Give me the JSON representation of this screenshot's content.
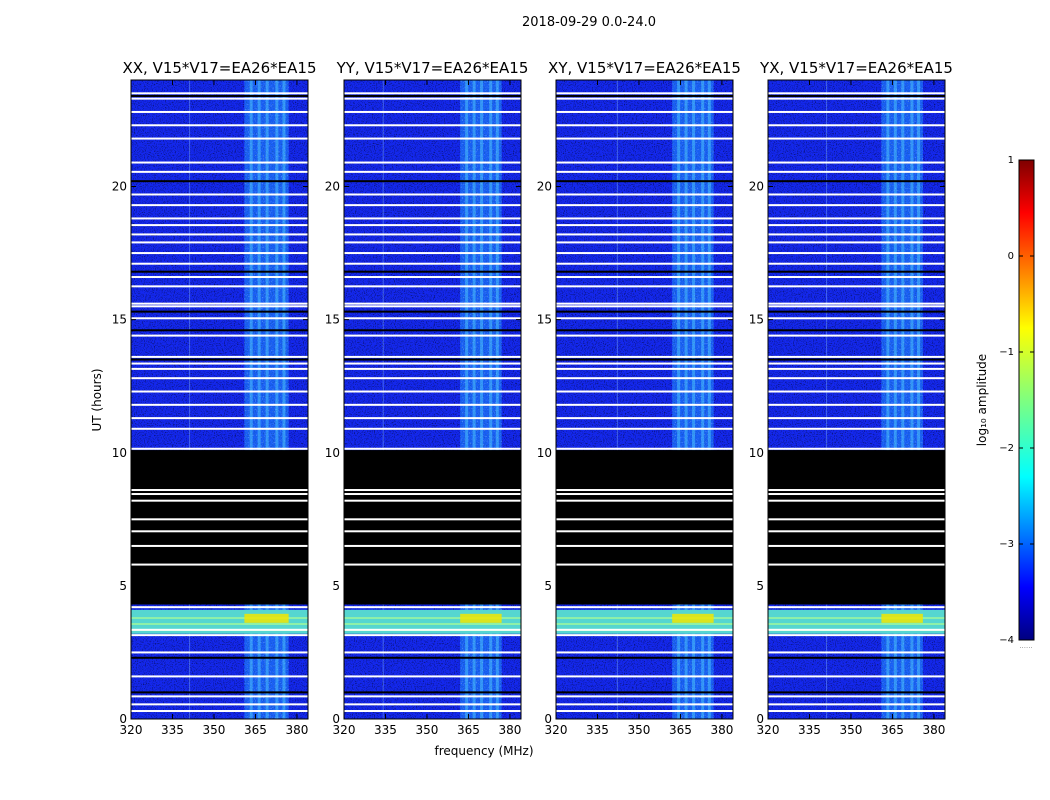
{
  "chart_data": {
    "type": "heatmap",
    "suptitle": "2018-09-29 0.0-24.0",
    "xlabel": "frequency (MHz)",
    "ylabel": "UT (hours)",
    "xlim": [
      320,
      384
    ],
    "ylim": [
      0,
      24
    ],
    "xticks": [
      320,
      335,
      350,
      365,
      380
    ],
    "yticks": [
      0,
      5,
      10,
      15,
      20
    ],
    "panels": [
      {
        "title": "XX, V15*V17=EA26*EA15",
        "noise_band_mhz": [
          361,
          377
        ]
      },
      {
        "title": "YY, V15*V17=EA26*EA15",
        "noise_band_mhz": [
          362,
          377
        ]
      },
      {
        "title": "XY, V15*V17=EA26*EA15",
        "noise_band_mhz": [
          362,
          377
        ]
      },
      {
        "title": "YX, V15*V17=EA26*EA15",
        "noise_band_mhz": [
          361,
          376
        ]
      }
    ],
    "flagged_black_hours": [
      4.3,
      10.1
    ],
    "calibrator_hours": [
      3.2,
      4.1
    ],
    "white_gap_hours": [
      0.3,
      0.55,
      0.85,
      1.6,
      2.5,
      3.15,
      3.35,
      4.2,
      5.8,
      6.5,
      7.05,
      7.5,
      8.2,
      8.45,
      8.6,
      10.15,
      10.9,
      11.3,
      11.8,
      12.3,
      12.8,
      13.15,
      13.35,
      13.6,
      14.4,
      15.05,
      15.5,
      15.6,
      16.25,
      16.6,
      17.1,
      17.5,
      17.9,
      18.2,
      18.55,
      18.8,
      19.3,
      19.7,
      20.55,
      20.9,
      21.8,
      22.3,
      22.8,
      23.3,
      23.5
    ],
    "black_gap_hours": [
      1.0,
      2.3,
      13.5,
      14.6,
      15.3,
      16.8,
      20.2,
      23.4
    ],
    "colorbar": {
      "label": "log₁₀ amplitude",
      "range": [
        -4,
        1
      ],
      "ticks": [
        "1",
        "0",
        "−1",
        "−2",
        "−3",
        "−4"
      ],
      "footnote": "......"
    }
  }
}
